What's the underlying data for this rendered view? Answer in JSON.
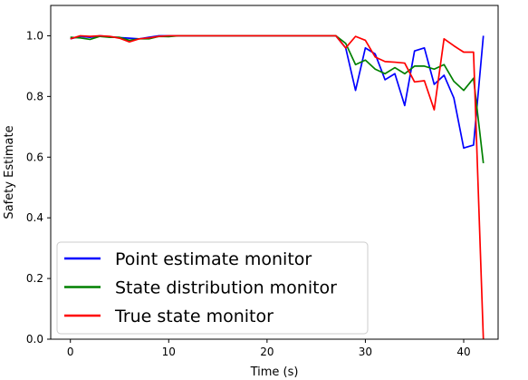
{
  "chart_data": {
    "type": "line",
    "title": "",
    "xlabel": "Time (s)",
    "ylabel": "Safety Estimate",
    "xlim": [
      -2,
      43.5
    ],
    "ylim": [
      0.0,
      1.1
    ],
    "xticks": [
      0,
      10,
      20,
      30,
      40
    ],
    "yticks": [
      0.0,
      0.2,
      0.4,
      0.6,
      0.8,
      1.0
    ],
    "grid": false,
    "legend_position": "lower-left",
    "series": [
      {
        "name": "Point estimate monitor",
        "color": "#0000ff",
        "points": [
          [
            0,
            0.99
          ],
          [
            1,
            0.998
          ],
          [
            2,
            0.995
          ],
          [
            3,
            1.0
          ],
          [
            4,
            0.997
          ],
          [
            5,
            0.994
          ],
          [
            6,
            0.992
          ],
          [
            7,
            0.99
          ],
          [
            8,
            0.995
          ],
          [
            9,
            1.0
          ],
          [
            10,
            1.0
          ],
          [
            11,
            1.0
          ],
          [
            12,
            1.0
          ],
          [
            13,
            1.0
          ],
          [
            14,
            1.0
          ],
          [
            15,
            1.0
          ],
          [
            16,
            1.0
          ],
          [
            17,
            1.0
          ],
          [
            18,
            1.0
          ],
          [
            19,
            1.0
          ],
          [
            20,
            1.0
          ],
          [
            21,
            1.0
          ],
          [
            22,
            1.0
          ],
          [
            23,
            1.0
          ],
          [
            24,
            1.0
          ],
          [
            25,
            1.0
          ],
          [
            26,
            1.0
          ],
          [
            27,
            1.0
          ],
          [
            28,
            0.96
          ],
          [
            29,
            0.82
          ],
          [
            30,
            0.96
          ],
          [
            31,
            0.94
          ],
          [
            32,
            0.855
          ],
          [
            33,
            0.875
          ],
          [
            34,
            0.77
          ],
          [
            35,
            0.95
          ],
          [
            36,
            0.96
          ],
          [
            37,
            0.84
          ],
          [
            38,
            0.87
          ],
          [
            39,
            0.795
          ],
          [
            40,
            0.63
          ],
          [
            41,
            0.64
          ],
          [
            42,
            1.0
          ]
        ]
      },
      {
        "name": "State distribution monitor",
        "color": "#008000",
        "points": [
          [
            0,
            0.995
          ],
          [
            1,
            0.993
          ],
          [
            2,
            0.988
          ],
          [
            3,
            0.998
          ],
          [
            4,
            0.995
          ],
          [
            5,
            0.995
          ],
          [
            6,
            0.985
          ],
          [
            7,
            0.99
          ],
          [
            8,
            0.99
          ],
          [
            9,
            0.998
          ],
          [
            10,
            0.997
          ],
          [
            11,
            1.0
          ],
          [
            12,
            1.0
          ],
          [
            13,
            1.0
          ],
          [
            14,
            1.0
          ],
          [
            15,
            1.0
          ],
          [
            16,
            1.0
          ],
          [
            17,
            1.0
          ],
          [
            18,
            1.0
          ],
          [
            19,
            1.0
          ],
          [
            20,
            1.0
          ],
          [
            21,
            1.0
          ],
          [
            22,
            1.0
          ],
          [
            23,
            1.0
          ],
          [
            24,
            1.0
          ],
          [
            25,
            1.0
          ],
          [
            26,
            1.0
          ],
          [
            27,
            1.0
          ],
          [
            28,
            0.975
          ],
          [
            29,
            0.905
          ],
          [
            30,
            0.92
          ],
          [
            31,
            0.89
          ],
          [
            32,
            0.875
          ],
          [
            33,
            0.895
          ],
          [
            34,
            0.875
          ],
          [
            35,
            0.9
          ],
          [
            36,
            0.9
          ],
          [
            37,
            0.89
          ],
          [
            38,
            0.905
          ],
          [
            39,
            0.85
          ],
          [
            40,
            0.82
          ],
          [
            41,
            0.86
          ],
          [
            42,
            0.58
          ]
        ]
      },
      {
        "name": "True state monitor",
        "color": "#ff0000",
        "points": [
          [
            0,
            0.99
          ],
          [
            1,
            1.0
          ],
          [
            2,
            0.998
          ],
          [
            3,
            1.0
          ],
          [
            4,
            0.998
          ],
          [
            5,
            0.992
          ],
          [
            6,
            0.98
          ],
          [
            7,
            0.99
          ],
          [
            8,
            0.993
          ],
          [
            9,
            0.998
          ],
          [
            10,
            1.0
          ],
          [
            11,
            1.0
          ],
          [
            12,
            1.0
          ],
          [
            13,
            1.0
          ],
          [
            14,
            1.0
          ],
          [
            15,
            1.0
          ],
          [
            16,
            1.0
          ],
          [
            17,
            1.0
          ],
          [
            18,
            1.0
          ],
          [
            19,
            1.0
          ],
          [
            20,
            1.0
          ],
          [
            21,
            1.0
          ],
          [
            22,
            1.0
          ],
          [
            23,
            1.0
          ],
          [
            24,
            1.0
          ],
          [
            25,
            1.0
          ],
          [
            26,
            1.0
          ],
          [
            27,
            1.0
          ],
          [
            28,
            0.96
          ],
          [
            29,
            0.998
          ],
          [
            30,
            0.985
          ],
          [
            31,
            0.93
          ],
          [
            32,
            0.915
          ],
          [
            33,
            0.913
          ],
          [
            34,
            0.91
          ],
          [
            35,
            0.848
          ],
          [
            36,
            0.852
          ],
          [
            37,
            0.756
          ],
          [
            38,
            0.99
          ],
          [
            39,
            0.967
          ],
          [
            40,
            0.946
          ],
          [
            41,
            0.946
          ],
          [
            42,
            0.0
          ]
        ]
      }
    ]
  }
}
